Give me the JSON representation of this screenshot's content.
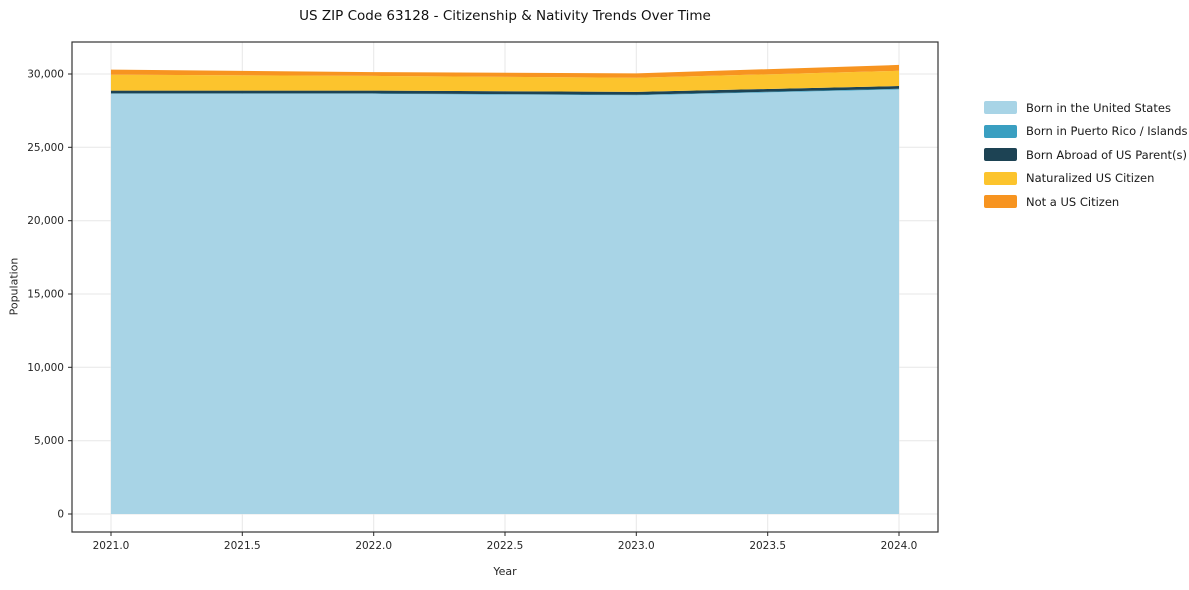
{
  "chart_data": {
    "type": "area",
    "title": "US ZIP Code 63128 - Citizenship & Nativity Trends Over Time",
    "xlabel": "Year",
    "ylabel": "Population",
    "stacked": true,
    "grid": true,
    "legend_position": "right",
    "x": [
      2021,
      2022,
      2023,
      2024
    ],
    "x_ticks": {
      "values": [
        2021.0,
        2021.5,
        2022.0,
        2022.5,
        2023.0,
        2023.5,
        2024.0
      ],
      "labels": [
        "2021.0",
        "2021.5",
        "2022.0",
        "2022.5",
        "2023.0",
        "2023.5",
        "2024.0"
      ]
    },
    "y_ticks": {
      "values": [
        0,
        5000,
        10000,
        15000,
        20000,
        25000,
        30000
      ],
      "labels": [
        "0",
        "5,000",
        "10,000",
        "15,000",
        "20,000",
        "25,000",
        "30,000"
      ]
    },
    "ylim": [
      0,
      32000
    ],
    "series": [
      {
        "name": "Born in the United States",
        "color": "#A8D4E6",
        "values": [
          28650,
          28650,
          28550,
          28950
        ]
      },
      {
        "name": "Born in Puerto Rico / Islands",
        "color": "#3A9FC1",
        "values": [
          30,
          30,
          30,
          40
        ]
      },
      {
        "name": "Born Abroad of US Parent(s)",
        "color": "#1D4354",
        "values": [
          190,
          190,
          200,
          190
        ]
      },
      {
        "name": "Naturalized US Citizen",
        "color": "#FCC42D",
        "values": [
          1080,
          1000,
          960,
          1040
        ]
      },
      {
        "name": "Not a US Citizen",
        "color": "#F79420",
        "values": [
          350,
          260,
          300,
          400
        ]
      }
    ],
    "style": {
      "grid_color": "#e7e7e7",
      "spine_color": "#333333",
      "tick_color": "#262626"
    }
  }
}
